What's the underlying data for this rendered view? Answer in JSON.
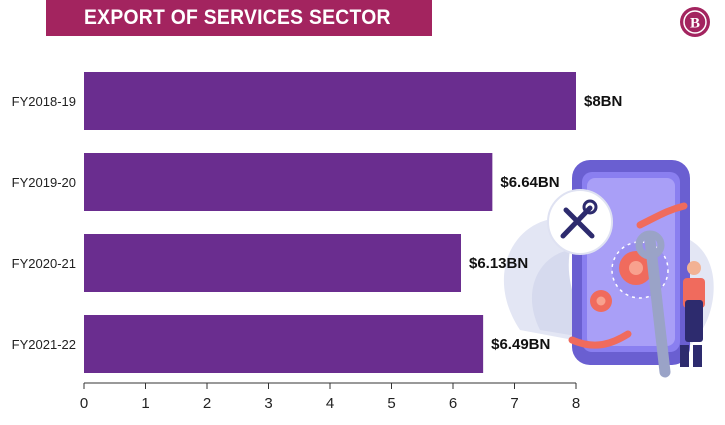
{
  "header": {
    "title": "EXPORT OF SERVICES SECTOR",
    "banner_color": "#a3245f"
  },
  "logo": {
    "icon": "brand-logo-icon",
    "letter": "B",
    "color": "#a3245f"
  },
  "chart_data": {
    "type": "bar",
    "orientation": "horizontal",
    "title": "EXPORT OF SERVICES SECTOR",
    "categories": [
      "FY2018-19",
      "FY2019-20",
      "FY2020-21",
      "FY2021-22"
    ],
    "values": [
      8,
      6.64,
      6.13,
      6.49
    ],
    "data_labels": [
      "$8BN",
      "$6.64BN",
      "$6.13BN",
      "$6.49BN"
    ],
    "xlim": [
      0,
      8
    ],
    "xticks": [
      "0",
      "1",
      "2",
      "3",
      "4",
      "5",
      "6",
      "7",
      "8"
    ],
    "xlabel": "",
    "ylabel": "",
    "grid": false,
    "bar_color": "#6a2d8f"
  },
  "illustration": {
    "icon": "mobile-repair-illustration-icon"
  }
}
